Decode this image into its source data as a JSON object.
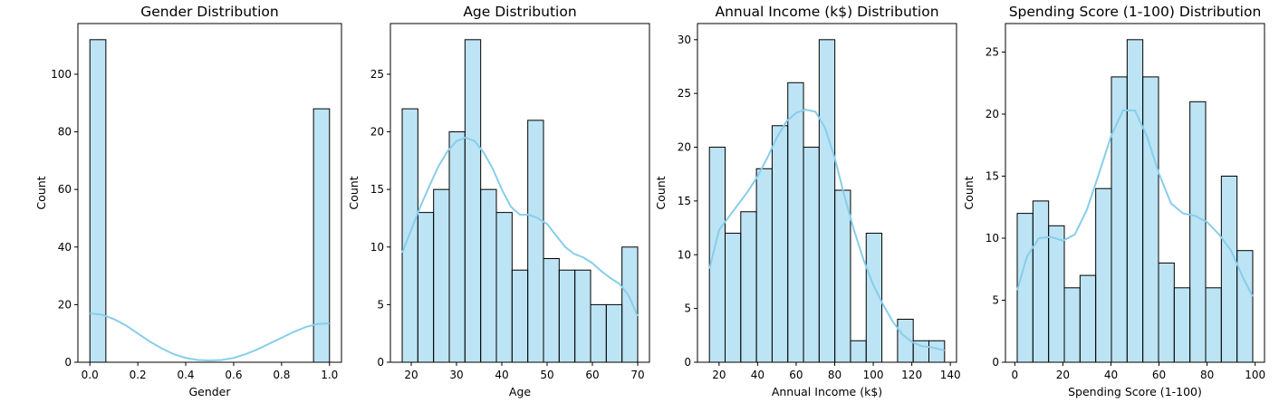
{
  "chart_data": [
    {
      "type": "histogram",
      "title": "Gender Distribution",
      "xlabel": "Gender",
      "ylabel": "Count",
      "xlim": [
        -0.05,
        1.05
      ],
      "ylim": [
        0,
        117.6
      ],
      "xticks": [
        0.0,
        0.2,
        0.4,
        0.6,
        0.8,
        1.0
      ],
      "xtick_labels": [
        "0.0",
        "0.2",
        "0.4",
        "0.6",
        "0.8",
        "1.0"
      ],
      "yticks": [
        0,
        20,
        40,
        60,
        80,
        100
      ],
      "ytick_labels": [
        "0",
        "20",
        "40",
        "60",
        "80",
        "100"
      ],
      "bin_edges": [
        0.0,
        0.0667,
        0.1333,
        0.2,
        0.2667,
        0.3333,
        0.4,
        0.4667,
        0.5333,
        0.6,
        0.6667,
        0.7333,
        0.8,
        0.8667,
        0.9333,
        1.0
      ],
      "counts": [
        112,
        0,
        0,
        0,
        0,
        0,
        0,
        0,
        0,
        0,
        0,
        0,
        0,
        0,
        88
      ],
      "kde": {
        "x": [
          0.0,
          0.05,
          0.1,
          0.15,
          0.2,
          0.25,
          0.3,
          0.35,
          0.4,
          0.45,
          0.5,
          0.55,
          0.6,
          0.65,
          0.7,
          0.75,
          0.8,
          0.85,
          0.9,
          0.95,
          1.0
        ],
        "y": [
          17,
          16.5,
          15,
          12.8,
          10,
          7.2,
          4.8,
          2.8,
          1.5,
          0.8,
          0.6,
          0.8,
          1.5,
          2.8,
          4.5,
          6.5,
          8.5,
          10.5,
          12.2,
          13.3,
          13.5
        ]
      }
    },
    {
      "type": "histogram",
      "title": "Age Distribution",
      "xlabel": "Age",
      "ylabel": "Count",
      "xlim": [
        15.4,
        72.6
      ],
      "ylim": [
        0,
        29.4
      ],
      "xticks": [
        20,
        30,
        40,
        50,
        60,
        70
      ],
      "xtick_labels": [
        "20",
        "30",
        "40",
        "50",
        "60",
        "70"
      ],
      "yticks": [
        0,
        5,
        10,
        15,
        20,
        25
      ],
      "ytick_labels": [
        "0",
        "5",
        "10",
        "15",
        "20",
        "25"
      ],
      "bin_edges": [
        18.0,
        21.4667,
        24.9333,
        28.4,
        31.8667,
        35.3333,
        38.8,
        42.2667,
        45.7333,
        49.2,
        52.6667,
        56.1333,
        59.6,
        63.0667,
        66.5333,
        70.0
      ],
      "counts": [
        22,
        13,
        15,
        20,
        28,
        15,
        13,
        8,
        21,
        9,
        8,
        8,
        5,
        5,
        10
      ],
      "kde": {
        "x": [
          18,
          20,
          22,
          24,
          26,
          28,
          30,
          32,
          34,
          36,
          38,
          40,
          42,
          44,
          46,
          48,
          50,
          52,
          54,
          56,
          58,
          60,
          62,
          64,
          66,
          68,
          70
        ],
        "y": [
          9.5,
          11.5,
          13.5,
          15.3,
          17,
          18.3,
          19.2,
          19.5,
          19.2,
          18.2,
          16.8,
          15,
          13.5,
          12.8,
          12.8,
          12.5,
          12,
          11,
          10,
          9.4,
          9.1,
          8.6,
          7.9,
          7.3,
          6.8,
          5.8,
          4
        ]
      }
    },
    {
      "type": "histogram",
      "title": "Annual Income (k$) Distribution",
      "xlabel": "Annual Income (k$)",
      "ylabel": "Count",
      "xlim": [
        8.8,
        143.2
      ],
      "ylim": [
        0,
        31.5
      ],
      "xticks": [
        20,
        40,
        60,
        80,
        100,
        120,
        140
      ],
      "xtick_labels": [
        "20",
        "40",
        "60",
        "80",
        "100",
        "120",
        "140"
      ],
      "yticks": [
        0,
        5,
        10,
        15,
        20,
        25,
        30
      ],
      "ytick_labels": [
        "0",
        "5",
        "10",
        "15",
        "20",
        "25",
        "30"
      ],
      "bin_edges": [
        15.0,
        23.1333,
        31.2667,
        39.4,
        47.5333,
        55.6667,
        63.8,
        71.9333,
        80.0667,
        88.2,
        96.3333,
        104.4667,
        112.6,
        120.7333,
        128.8667,
        137.0
      ],
      "counts": [
        20,
        12,
        14,
        18,
        22,
        26,
        20,
        30,
        16,
        2,
        12,
        0,
        4,
        2,
        2
      ],
      "kde": {
        "x": [
          15,
          20,
          25,
          30,
          35,
          40,
          45,
          50,
          55,
          60,
          65,
          70,
          75,
          80,
          85,
          90,
          95,
          100,
          105,
          110,
          115,
          120,
          125,
          130,
          137
        ],
        "y": [
          8.7,
          12.3,
          13.5,
          14.7,
          15.9,
          17.3,
          19,
          20.9,
          22.4,
          23.2,
          23.5,
          23.3,
          21.8,
          19,
          15.5,
          12.3,
          9.5,
          7.2,
          5.4,
          3.8,
          2.6,
          1.9,
          1.5,
          1.4,
          1.1
        ]
      }
    },
    {
      "type": "histogram",
      "title": "Spending Score (1-100) Distribution",
      "xlabel": "Spending Score (1-100)",
      "ylabel": "Count",
      "xlim": [
        -3.9,
        103.9
      ],
      "ylim": [
        0,
        27.3
      ],
      "xticks": [
        0,
        20,
        40,
        60,
        80,
        100
      ],
      "xtick_labels": [
        "0",
        "20",
        "40",
        "60",
        "80",
        "100"
      ],
      "yticks": [
        0,
        5,
        10,
        15,
        20,
        25
      ],
      "ytick_labels": [
        "0",
        "5",
        "10",
        "15",
        "20",
        "25"
      ],
      "bin_edges": [
        1.0,
        7.5333,
        14.0667,
        20.6,
        27.1333,
        33.6667,
        40.2,
        46.7333,
        53.2667,
        59.8,
        66.3333,
        72.8667,
        79.4,
        85.9333,
        92.4667,
        99.0
      ],
      "counts": [
        12,
        13,
        11,
        6,
        7,
        14,
        23,
        26,
        23,
        8,
        6,
        21,
        6,
        15,
        9
      ],
      "kde": {
        "x": [
          1,
          5,
          10,
          15,
          20,
          25,
          30,
          35,
          40,
          45,
          50,
          55,
          60,
          65,
          70,
          75,
          80,
          85,
          90,
          95,
          99
        ],
        "y": [
          5.8,
          8.5,
          10,
          10.1,
          9.8,
          10.3,
          12.3,
          15.2,
          18.2,
          20.3,
          20.3,
          18.2,
          15.2,
          12.8,
          12,
          11.8,
          11.3,
          10.3,
          9,
          6.8,
          5.3
        ]
      }
    }
  ]
}
